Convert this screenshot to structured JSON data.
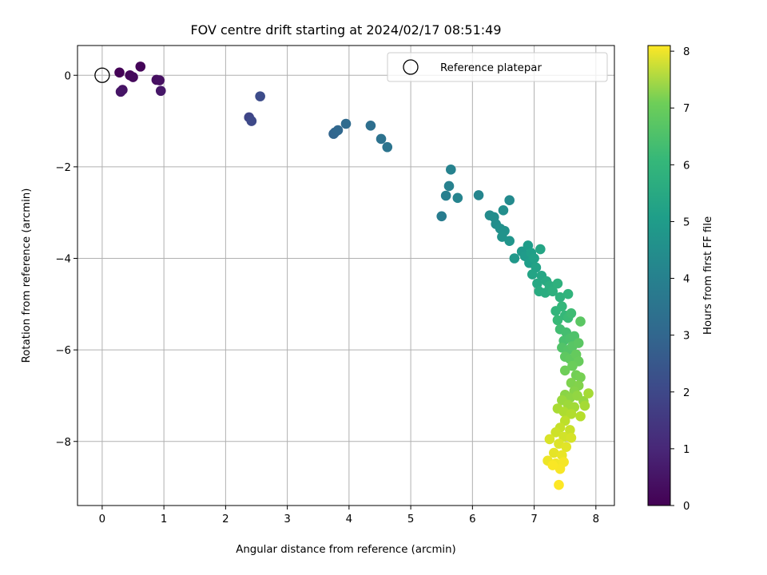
{
  "chart_data": {
    "type": "scatter",
    "title": "FOV centre drift starting at 2024/02/17 08:51:49",
    "xlabel": "Angular distance from reference (arcmin)",
    "ylabel": "Rotation from reference (arcmin)",
    "xlim": [
      -0.4,
      8.3
    ],
    "ylim": [
      -9.4,
      0.65
    ],
    "xticks": [
      0,
      1,
      2,
      3,
      4,
      5,
      6,
      7,
      8
    ],
    "yticks": [
      0,
      -2,
      -4,
      -6,
      -8
    ],
    "grid": true,
    "legend": {
      "label": "Reference platepar",
      "placement": "top-right"
    },
    "reference_point": {
      "x": 0,
      "y": 0
    },
    "colorbar": {
      "label": "Hours from first FF file",
      "colormap": "viridis",
      "range": [
        0,
        8.1
      ],
      "ticks": [
        0,
        1,
        2,
        3,
        4,
        5,
        6,
        7,
        8
      ]
    },
    "points": [
      {
        "x": 0.28,
        "y": 0.06,
        "t": 0.05
      },
      {
        "x": 0.62,
        "y": 0.19,
        "t": 0.1
      },
      {
        "x": 0.45,
        "y": 0.0,
        "t": 0.15
      },
      {
        "x": 0.5,
        "y": -0.04,
        "t": 0.2
      },
      {
        "x": 0.88,
        "y": -0.1,
        "t": 0.3
      },
      {
        "x": 0.93,
        "y": -0.11,
        "t": 0.35
      },
      {
        "x": 0.33,
        "y": -0.32,
        "t": 0.4
      },
      {
        "x": 0.3,
        "y": -0.36,
        "t": 0.45
      },
      {
        "x": 0.95,
        "y": -0.34,
        "t": 0.5
      },
      {
        "x": 2.38,
        "y": -0.92,
        "t": 1.7
      },
      {
        "x": 2.42,
        "y": -1.0,
        "t": 1.8
      },
      {
        "x": 2.56,
        "y": -0.46,
        "t": 1.9
      },
      {
        "x": 3.75,
        "y": -1.28,
        "t": 2.6
      },
      {
        "x": 3.77,
        "y": -1.25,
        "t": 2.65
      },
      {
        "x": 3.82,
        "y": -1.2,
        "t": 2.7
      },
      {
        "x": 3.95,
        "y": -1.06,
        "t": 2.8
      },
      {
        "x": 4.35,
        "y": -1.1,
        "t": 2.95
      },
      {
        "x": 4.52,
        "y": -1.39,
        "t": 3.05
      },
      {
        "x": 4.62,
        "y": -1.57,
        "t": 3.1
      },
      {
        "x": 5.5,
        "y": -3.08,
        "t": 3.4
      },
      {
        "x": 5.57,
        "y": -2.63,
        "t": 3.5
      },
      {
        "x": 5.62,
        "y": -2.42,
        "t": 3.55
      },
      {
        "x": 5.65,
        "y": -2.06,
        "t": 3.6
      },
      {
        "x": 5.76,
        "y": -2.68,
        "t": 3.65
      },
      {
        "x": 6.1,
        "y": -2.62,
        "t": 3.7
      },
      {
        "x": 6.6,
        "y": -2.73,
        "t": 3.85
      },
      {
        "x": 6.28,
        "y": -3.06,
        "t": 3.9
      },
      {
        "x": 6.35,
        "y": -3.1,
        "t": 3.95
      },
      {
        "x": 6.38,
        "y": -3.25,
        "t": 4.0
      },
      {
        "x": 6.5,
        "y": -2.95,
        "t": 4.0
      },
      {
        "x": 6.45,
        "y": -3.35,
        "t": 4.05
      },
      {
        "x": 6.52,
        "y": -3.4,
        "t": 4.1
      },
      {
        "x": 6.48,
        "y": -3.53,
        "t": 4.15
      },
      {
        "x": 6.6,
        "y": -3.62,
        "t": 4.2
      },
      {
        "x": 6.68,
        "y": -4.0,
        "t": 4.3
      },
      {
        "x": 6.8,
        "y": -3.85,
        "t": 4.35
      },
      {
        "x": 6.85,
        "y": -3.95,
        "t": 4.4
      },
      {
        "x": 6.9,
        "y": -3.72,
        "t": 4.45
      },
      {
        "x": 6.92,
        "y": -4.1,
        "t": 4.5
      },
      {
        "x": 6.95,
        "y": -3.88,
        "t": 4.55
      },
      {
        "x": 7.0,
        "y": -4.0,
        "t": 4.6
      },
      {
        "x": 7.03,
        "y": -4.2,
        "t": 4.65
      },
      {
        "x": 6.97,
        "y": -4.35,
        "t": 4.7
      },
      {
        "x": 7.1,
        "y": -3.8,
        "t": 4.75
      },
      {
        "x": 7.12,
        "y": -4.38,
        "t": 4.8
      },
      {
        "x": 7.05,
        "y": -4.55,
        "t": 4.85
      },
      {
        "x": 7.2,
        "y": -4.5,
        "t": 4.9
      },
      {
        "x": 7.08,
        "y": -4.72,
        "t": 4.95
      },
      {
        "x": 7.18,
        "y": -4.75,
        "t": 5.0
      },
      {
        "x": 7.25,
        "y": -4.6,
        "t": 5.05
      },
      {
        "x": 7.3,
        "y": -4.72,
        "t": 5.1
      },
      {
        "x": 7.38,
        "y": -4.55,
        "t": 5.15
      },
      {
        "x": 7.42,
        "y": -4.85,
        "t": 5.2
      },
      {
        "x": 7.55,
        "y": -4.78,
        "t": 5.25
      },
      {
        "x": 7.35,
        "y": -5.15,
        "t": 5.3
      },
      {
        "x": 7.45,
        "y": -5.05,
        "t": 5.35
      },
      {
        "x": 7.5,
        "y": -5.25,
        "t": 5.4
      },
      {
        "x": 7.38,
        "y": -5.35,
        "t": 5.45
      },
      {
        "x": 7.55,
        "y": -5.3,
        "t": 5.5
      },
      {
        "x": 7.6,
        "y": -5.2,
        "t": 5.55
      },
      {
        "x": 7.42,
        "y": -5.55,
        "t": 5.6
      },
      {
        "x": 7.52,
        "y": -5.62,
        "t": 5.65
      },
      {
        "x": 7.48,
        "y": -5.8,
        "t": 5.7
      },
      {
        "x": 7.58,
        "y": -5.75,
        "t": 5.75
      },
      {
        "x": 7.65,
        "y": -5.7,
        "t": 5.8
      },
      {
        "x": 7.45,
        "y": -5.95,
        "t": 5.85
      },
      {
        "x": 7.55,
        "y": -6.0,
        "t": 5.9
      },
      {
        "x": 7.62,
        "y": -5.92,
        "t": 5.95
      },
      {
        "x": 7.72,
        "y": -5.85,
        "t": 6.0
      },
      {
        "x": 7.75,
        "y": -5.38,
        "t": 6.0
      },
      {
        "x": 7.5,
        "y": -6.15,
        "t": 6.05
      },
      {
        "x": 7.58,
        "y": -6.2,
        "t": 6.1
      },
      {
        "x": 7.68,
        "y": -6.1,
        "t": 6.15
      },
      {
        "x": 7.72,
        "y": -6.25,
        "t": 6.2
      },
      {
        "x": 7.62,
        "y": -6.35,
        "t": 6.25
      },
      {
        "x": 7.5,
        "y": -6.45,
        "t": 6.3
      },
      {
        "x": 7.68,
        "y": -6.55,
        "t": 6.35
      },
      {
        "x": 7.75,
        "y": -6.6,
        "t": 6.4
      },
      {
        "x": 7.6,
        "y": -6.72,
        "t": 6.5
      },
      {
        "x": 7.72,
        "y": -6.78,
        "t": 6.55
      },
      {
        "x": 7.65,
        "y": -6.9,
        "t": 6.6
      },
      {
        "x": 7.5,
        "y": -6.98,
        "t": 6.65
      },
      {
        "x": 7.58,
        "y": -7.05,
        "t": 6.7
      },
      {
        "x": 7.7,
        "y": -7.0,
        "t": 6.75
      },
      {
        "x": 7.8,
        "y": -7.12,
        "t": 6.8
      },
      {
        "x": 7.45,
        "y": -7.1,
        "t": 6.85
      },
      {
        "x": 7.55,
        "y": -7.2,
        "t": 6.9
      },
      {
        "x": 7.65,
        "y": -7.25,
        "t": 6.95
      },
      {
        "x": 7.82,
        "y": -7.22,
        "t": 7.0
      },
      {
        "x": 7.38,
        "y": -7.28,
        "t": 7.05
      },
      {
        "x": 7.48,
        "y": -7.35,
        "t": 7.1
      },
      {
        "x": 7.6,
        "y": -7.4,
        "t": 7.15
      },
      {
        "x": 7.75,
        "y": -7.45,
        "t": 7.2
      },
      {
        "x": 7.88,
        "y": -6.95,
        "t": 7.0
      },
      {
        "x": 7.5,
        "y": -7.55,
        "t": 7.3
      },
      {
        "x": 7.42,
        "y": -7.7,
        "t": 7.4
      },
      {
        "x": 7.58,
        "y": -7.75,
        "t": 7.45
      },
      {
        "x": 7.35,
        "y": -7.8,
        "t": 7.5
      },
      {
        "x": 7.48,
        "y": -7.9,
        "t": 7.55
      },
      {
        "x": 7.6,
        "y": -7.92,
        "t": 7.6
      },
      {
        "x": 7.25,
        "y": -7.95,
        "t": 7.65
      },
      {
        "x": 7.4,
        "y": -8.05,
        "t": 7.7
      },
      {
        "x": 7.52,
        "y": -8.12,
        "t": 7.75
      },
      {
        "x": 7.32,
        "y": -8.25,
        "t": 7.8
      },
      {
        "x": 7.45,
        "y": -8.3,
        "t": 7.85
      },
      {
        "x": 7.22,
        "y": -8.42,
        "t": 7.9
      },
      {
        "x": 7.35,
        "y": -8.48,
        "t": 7.95
      },
      {
        "x": 7.48,
        "y": -8.45,
        "t": 8.0
      },
      {
        "x": 7.42,
        "y": -8.6,
        "t": 8.02
      },
      {
        "x": 7.3,
        "y": -8.52,
        "t": 8.05
      },
      {
        "x": 7.4,
        "y": -8.95,
        "t": 8.1
      }
    ]
  }
}
